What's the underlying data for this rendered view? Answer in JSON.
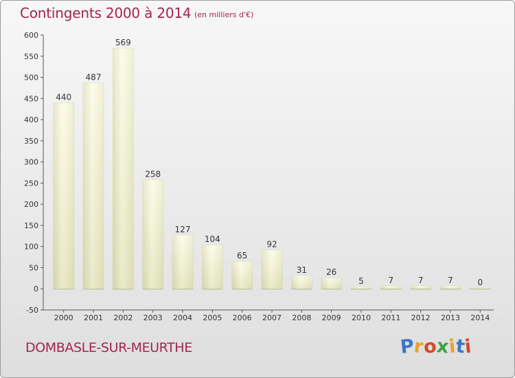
{
  "title": "Contingents 2000 à 2014",
  "subtitle": "(en milliers d'€)",
  "commune": "DOMBASLE-SUR-MEURTHE",
  "logo": {
    "letters": [
      "P",
      "r",
      "o",
      "x",
      "i",
      "t",
      "i"
    ],
    "colors": [
      "#3b78c4",
      "#e8a22c",
      "#d9452c",
      "#3fa14a",
      "#e8a22c",
      "#3b78c4",
      "#d9452c"
    ]
  },
  "colors": {
    "title": "#a4244f"
  },
  "chart_data": {
    "type": "bar",
    "categories": [
      "2000",
      "2001",
      "2002",
      "2003",
      "2004",
      "2005",
      "2006",
      "2007",
      "2008",
      "2009",
      "2010",
      "2011",
      "2012",
      "2013",
      "2014"
    ],
    "values": [
      440,
      487,
      569,
      258,
      127,
      104,
      65,
      92,
      31,
      26,
      5,
      7,
      7,
      7,
      0
    ],
    "yticks": [
      -50,
      0,
      50,
      100,
      150,
      200,
      250,
      300,
      350,
      400,
      450,
      500,
      550,
      600
    ],
    "ylim": [
      -50,
      600
    ],
    "grid": false,
    "bar_color": "#f4f6cf"
  }
}
